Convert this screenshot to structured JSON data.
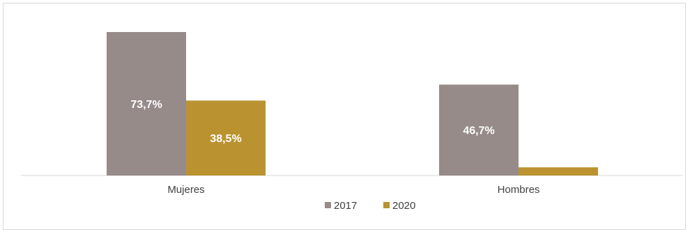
{
  "chart_data": {
    "type": "bar",
    "categories": [
      "Mujeres",
      "Hombres"
    ],
    "series": [
      {
        "name": "2017",
        "color": "#968b89",
        "values": [
          73.7,
          46.7
        ],
        "labels": [
          "73,7%",
          "46,7%"
        ]
      },
      {
        "name": "2020",
        "color": "#bb9230",
        "values": [
          38.5,
          4.2
        ],
        "labels": [
          "38,5%",
          ""
        ]
      }
    ],
    "ylim": [
      0,
      85
    ],
    "grid": false,
    "legend_position": "bottom"
  }
}
